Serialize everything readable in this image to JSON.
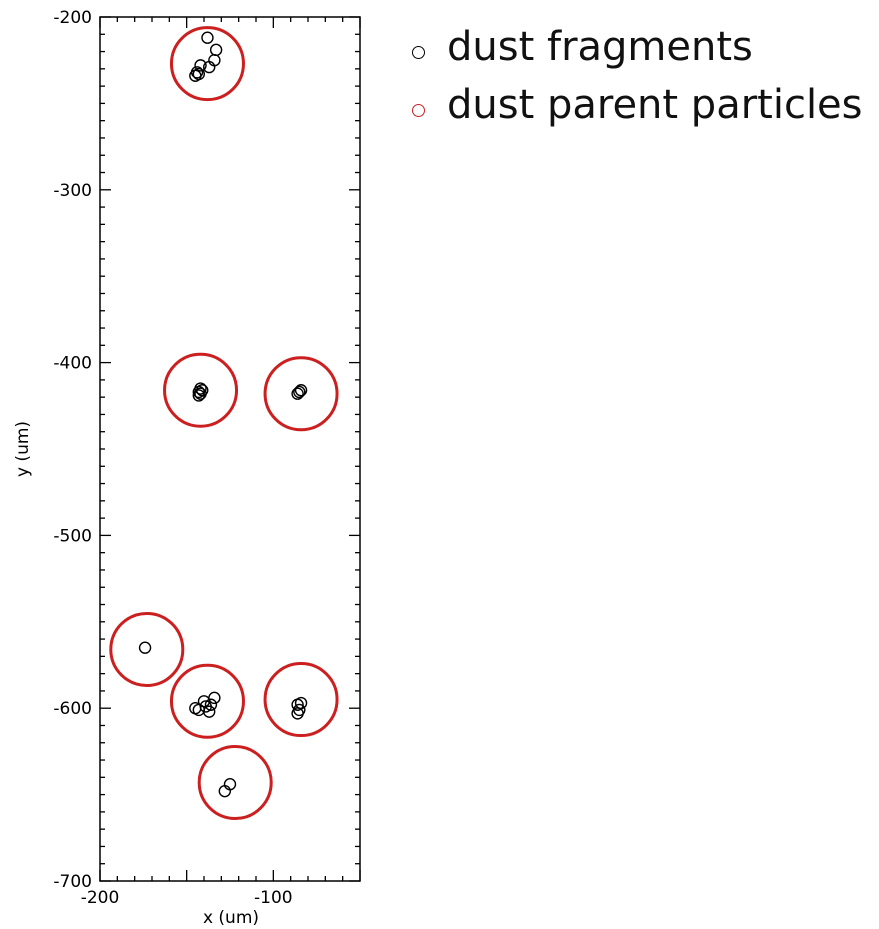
{
  "colors": {
    "fragment": "#000000",
    "parent": "#cc1f1f",
    "axis": "#000000"
  },
  "chart_data": {
    "type": "scatter",
    "title": "",
    "xlabel": "x (um)",
    "ylabel": "y (um)",
    "xlim": [
      -200,
      -50
    ],
    "ylim": [
      -700,
      -200
    ],
    "y_inverted": true,
    "grid": false,
    "legend_position": "outside-top-right",
    "x_ticks": [
      -200,
      -100
    ],
    "x_tick_labels": [
      "-200",
      "-100"
    ],
    "y_ticks": [
      -200,
      -300,
      -400,
      -500,
      -600,
      -700
    ],
    "y_tick_labels": [
      "-200",
      "-300",
      "-400",
      "-500",
      "-600",
      "-700"
    ],
    "series": [
      {
        "name": "dust fragments",
        "marker": "small-open-circle",
        "color": "#000000",
        "points": [
          [
            -138,
            -212
          ],
          [
            -133,
            -219
          ],
          [
            -134,
            -225
          ],
          [
            -137,
            -229
          ],
          [
            -142,
            -228
          ],
          [
            -144,
            -232
          ],
          [
            -145,
            -234
          ],
          [
            -143,
            -233
          ],
          [
            -143,
            -417
          ],
          [
            -142,
            -415
          ],
          [
            -141,
            -416
          ],
          [
            -142,
            -418
          ],
          [
            -143,
            -419
          ],
          [
            -86,
            -418
          ],
          [
            -85,
            -417
          ],
          [
            -84,
            -416
          ],
          [
            -174,
            -565
          ],
          [
            -145,
            -600
          ],
          [
            -143,
            -601
          ],
          [
            -140,
            -596
          ],
          [
            -139,
            -599
          ],
          [
            -137,
            -602
          ],
          [
            -136,
            -598
          ],
          [
            -134,
            -594
          ],
          [
            -86,
            -598
          ],
          [
            -85,
            -601
          ],
          [
            -86,
            -603
          ],
          [
            -84,
            -597
          ],
          [
            -128,
            -648
          ],
          [
            -125,
            -644
          ]
        ]
      },
      {
        "name": "dust parent particles",
        "marker": "large-open-circle",
        "color": "#cc1f1f",
        "points": [
          [
            -138,
            -227
          ],
          [
            -142,
            -416
          ],
          [
            -84,
            -418
          ],
          [
            -173,
            -566
          ],
          [
            -138,
            -596
          ],
          [
            -84,
            -595
          ],
          [
            -122,
            -643
          ]
        ]
      }
    ]
  }
}
